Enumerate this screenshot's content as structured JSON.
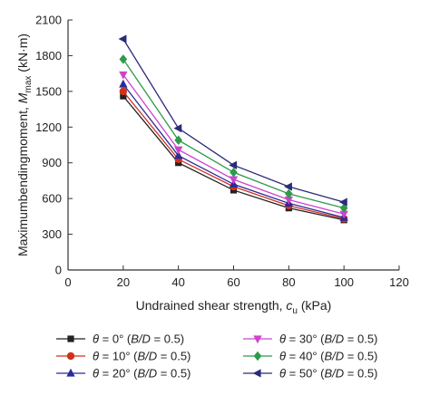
{
  "chart_data": {
    "type": "line",
    "x_axis": {
      "label_main": "Undrained shear strength, ",
      "label_var": "c",
      "label_sub": "u",
      "label_unit": " (kPa)",
      "range": [
        0,
        120
      ],
      "ticks": [
        0,
        20,
        40,
        60,
        80,
        100,
        120
      ]
    },
    "y_axis": {
      "label_main": "Maximumbendingmoment, ",
      "label_var": "M",
      "label_sub": "max",
      "label_unit": " (kN·m)",
      "range": [
        0,
        2100
      ],
      "ticks": [
        0,
        300,
        600,
        900,
        1200,
        1500,
        1800,
        2100
      ]
    },
    "x": [
      20,
      40,
      60,
      80,
      100
    ],
    "series": [
      {
        "name": "θ = 0° (B/D = 0.5)",
        "theta": "0°",
        "color": "#222222",
        "marker": "square",
        "values": [
          1460,
          900,
          670,
          520,
          420
        ]
      },
      {
        "name": "θ = 10° (B/D = 0.5)",
        "theta": "10°",
        "color": "#d0321e",
        "marker": "circle",
        "values": [
          1500,
          930,
          700,
          540,
          430
        ]
      },
      {
        "name": "θ = 20° (B/D = 0.5)",
        "theta": "20°",
        "color": "#2b2b9a",
        "marker": "triangle-up",
        "values": [
          1560,
          960,
          720,
          560,
          440
        ]
      },
      {
        "name": "θ = 30° (B/D = 0.5)",
        "theta": "30°",
        "color": "#cc44cc",
        "marker": "triangle-down",
        "values": [
          1640,
          1010,
          760,
          590,
          470
        ]
      },
      {
        "name": "θ = 40° (B/D = 0.5)",
        "theta": "40°",
        "color": "#2e9a4a",
        "marker": "diamond",
        "values": [
          1770,
          1090,
          820,
          640,
          520
        ]
      },
      {
        "name": "θ = 50° (B/D = 0.5)",
        "theta": "50°",
        "color": "#2b2b7a",
        "marker": "triangle-left",
        "values": [
          1940,
          1190,
          880,
          700,
          570
        ]
      }
    ],
    "legend": {
      "placement": "bottom",
      "prefix": "θ",
      "suffix_open": " (",
      "suffix_var": "B/D",
      "suffix_close": " = 0.5)"
    },
    "grid": false
  }
}
